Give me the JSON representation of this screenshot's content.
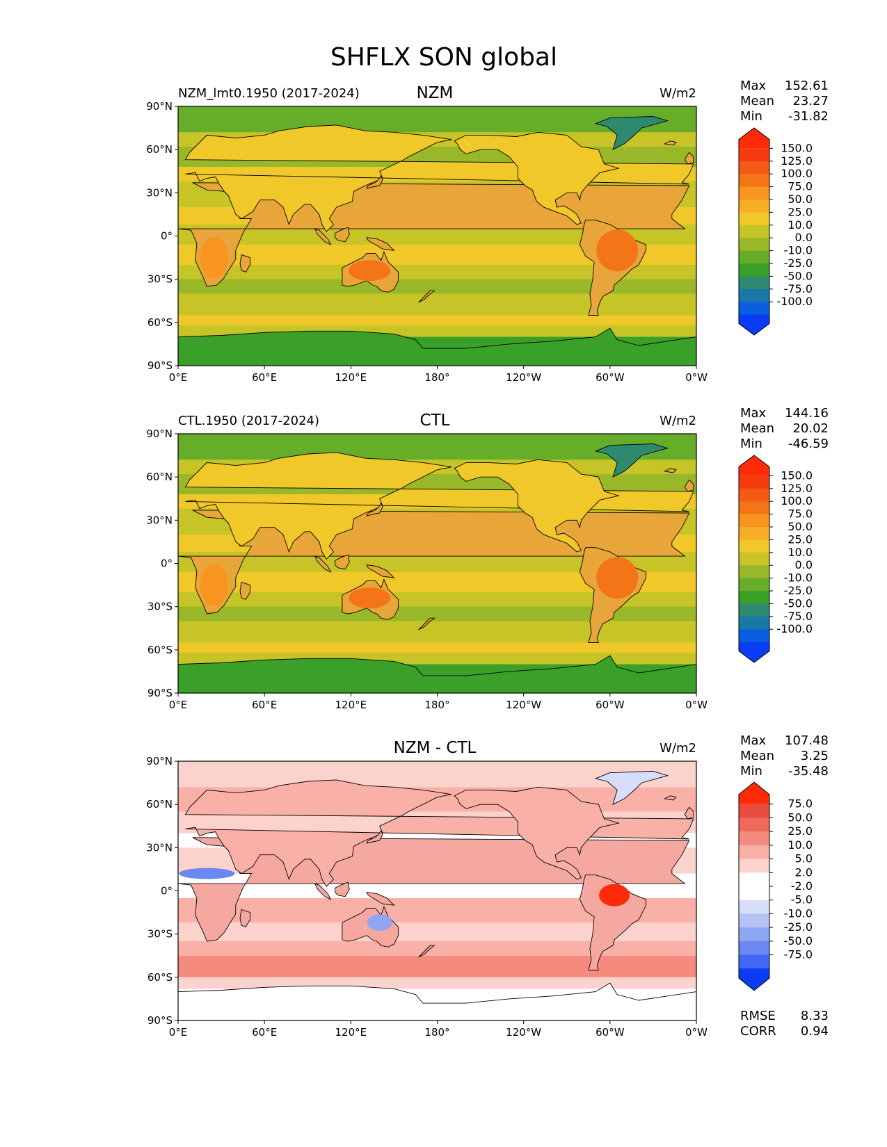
{
  "figure_title": "SHFLX SON global",
  "colors": {
    "abs_scale": [
      "#0a3cf5",
      "#0a5fe0",
      "#1a78a8",
      "#2e8a6e",
      "#3aa02a",
      "#66ae2a",
      "#98b82a",
      "#c6c426",
      "#f0c82a",
      "#f8ad26",
      "#f89420",
      "#f47418",
      "#f45a14",
      "#f53a10",
      "#ff2a08"
    ],
    "diff_scale": [
      "#0a3cf5",
      "#4466f5",
      "#6b88f2",
      "#8fa6f2",
      "#b5c3f5",
      "#d6def9",
      "#ffffff",
      "#ffffff",
      "#fcd2cc",
      "#f9b0a6",
      "#f48b7e",
      "#ef6a5c",
      "#e94c3c",
      "#ff2a08"
    ],
    "land_abs": "#e8a63a",
    "land_diff": "#f5a8a0"
  },
  "axis_labels": {
    "lat": [
      "90°N",
      "60°N",
      "30°N",
      "0°",
      "30°S",
      "60°S",
      "90°S"
    ],
    "lon": [
      "0°E",
      "60°E",
      "120°E",
      "180°",
      "120°W",
      "60°W",
      "0°W"
    ]
  },
  "stat_labels": {
    "max": "Max",
    "mean": "Mean",
    "min": "Min",
    "rmse": "RMSE",
    "corr": "CORR"
  },
  "panels": [
    {
      "title": "NZM",
      "left_label": "NZM_lmt0.1950 (2017-2024)",
      "units": "W/m2",
      "max": "152.61",
      "mean": "23.27",
      "min": "-31.82",
      "kind": "abs"
    },
    {
      "title": "CTL",
      "left_label": "CTL.1950 (2017-2024)",
      "units": "W/m2",
      "max": "144.16",
      "mean": "20.02",
      "min": "-46.59",
      "kind": "abs"
    },
    {
      "title": "NZM - CTL",
      "left_label": "",
      "units": "W/m2",
      "max": "107.48",
      "mean": "3.25",
      "min": "-35.48",
      "kind": "diff",
      "rmse": "8.33",
      "corr": "0.94"
    }
  ],
  "chart_data": [
    {
      "type": "heatmap",
      "title": "NZM",
      "subtitle": "NZM_lmt0.1950 (2017-2024)",
      "units": "W/m2",
      "x": [
        "0°E",
        "60°E",
        "120°E",
        "180°",
        "120°W",
        "60°W",
        "0°W"
      ],
      "y": [
        "90°N",
        "60°N",
        "30°N",
        "0°",
        "30°S",
        "60°S",
        "90°S"
      ],
      "xlim": [
        0,
        360
      ],
      "ylim": [
        -90,
        90
      ],
      "colorbar_levels": [
        "150.0",
        "125.0",
        "100.0",
        "75.0",
        "50.0",
        "25.0",
        "10.0",
        "0.0",
        "-10.0",
        "-25.0",
        "-50.0",
        "-75.0",
        "-100.0"
      ],
      "stats": {
        "max": 152.61,
        "mean": 23.27,
        "min": -31.82
      }
    },
    {
      "type": "heatmap",
      "title": "CTL",
      "subtitle": "CTL.1950 (2017-2024)",
      "units": "W/m2",
      "x": [
        "0°E",
        "60°E",
        "120°E",
        "180°",
        "120°W",
        "60°W",
        "0°W"
      ],
      "y": [
        "90°N",
        "60°N",
        "30°N",
        "0°",
        "30°S",
        "60°S",
        "90°S"
      ],
      "xlim": [
        0,
        360
      ],
      "ylim": [
        -90,
        90
      ],
      "colorbar_levels": [
        "150.0",
        "125.0",
        "100.0",
        "75.0",
        "50.0",
        "25.0",
        "10.0",
        "0.0",
        "-10.0",
        "-25.0",
        "-50.0",
        "-75.0",
        "-100.0"
      ],
      "stats": {
        "max": 144.16,
        "mean": 20.02,
        "min": -46.59
      }
    },
    {
      "type": "heatmap",
      "title": "NZM - CTL",
      "subtitle": "",
      "units": "W/m2",
      "x": [
        "0°E",
        "60°E",
        "120°E",
        "180°",
        "120°W",
        "60°W",
        "0°W"
      ],
      "y": [
        "90°N",
        "60°N",
        "30°N",
        "0°",
        "30°S",
        "60°S",
        "90°S"
      ],
      "xlim": [
        0,
        360
      ],
      "ylim": [
        -90,
        90
      ],
      "colorbar_levels": [
        "75.0",
        "50.0",
        "25.0",
        "10.0",
        "5.0",
        "2.0",
        "-2.0",
        "-5.0",
        "-10.0",
        "-25.0",
        "-50.0",
        "-75.0"
      ],
      "stats": {
        "max": 107.48,
        "mean": 3.25,
        "min": -35.48,
        "rmse": 8.33,
        "corr": 0.94
      }
    }
  ]
}
